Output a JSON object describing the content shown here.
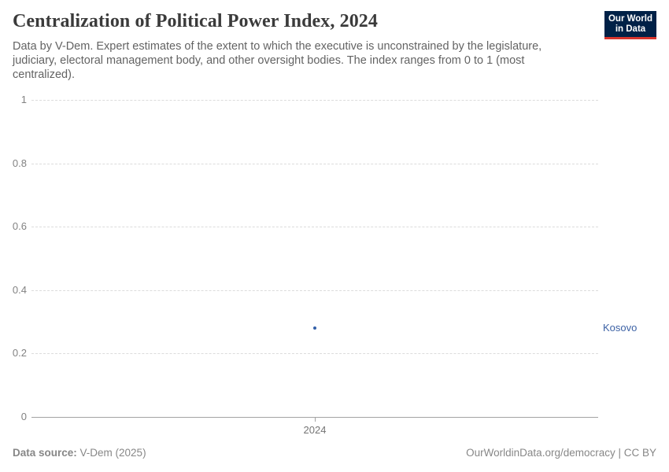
{
  "header": {
    "title": "Centralization of Political Power Index, 2024",
    "subtitle": "Data by V-Dem. Expert estimates of the extent to which the executive is unconstrained by the legislature, judiciary, electoral management body, and other oversight bodies. The index ranges from 0 to 1 (most centralized)."
  },
  "logo": {
    "line1": "Our World",
    "line2": "in Data",
    "bg_color": "#002147",
    "accent_color": "#d8352e"
  },
  "chart_data": {
    "type": "scatter",
    "title": "Centralization of Political Power Index, 2024",
    "x": [
      2024
    ],
    "series": [
      {
        "name": "Kosovo",
        "values": [
          0.28
        ]
      }
    ],
    "xlabel": "",
    "ylabel": "",
    "ylim": [
      0,
      1
    ],
    "yticks": [
      {
        "value": 0,
        "label": "0"
      },
      {
        "value": 0.2,
        "label": "0.2"
      },
      {
        "value": 0.4,
        "label": "0.4"
      },
      {
        "value": 0.6,
        "label": "0.6"
      },
      {
        "value": 0.8,
        "label": "0.8"
      },
      {
        "value": 1,
        "label": "1"
      }
    ],
    "xtick_labels": [
      "2024"
    ],
    "grid": "horizontal-dashed",
    "legend_position": "right-entity-label",
    "point_color": "#3360a9",
    "entity_label_color": "#3d62a5"
  },
  "footer": {
    "source_label": "Data source:",
    "source_value": " V-Dem (2025)",
    "license": "OurWorldinData.org/democracy | CC BY"
  }
}
